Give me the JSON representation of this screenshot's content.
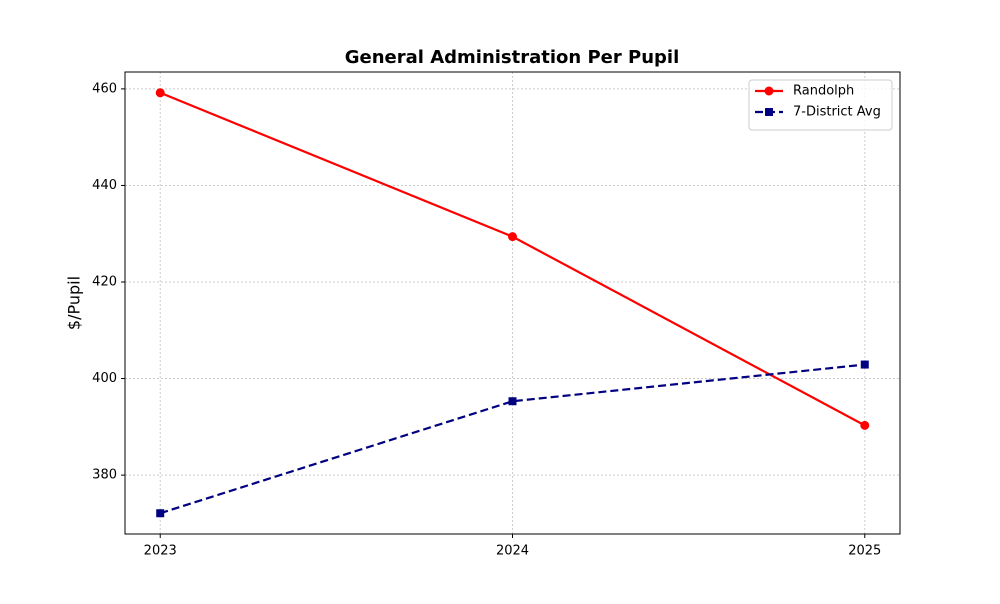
{
  "chart_data": {
    "type": "line",
    "title": "General Administration Per Pupil",
    "y_label": "$/Pupil",
    "x": [
      2023,
      2024,
      2025
    ],
    "xlim": [
      2022.9,
      2025.1
    ],
    "xticks": [
      2023,
      2024,
      2025
    ],
    "ylim": [
      367.8,
      463.5
    ],
    "yticks": [
      380,
      400,
      420,
      440,
      460
    ],
    "grid": true,
    "legend": "upper-right",
    "series": [
      {
        "name": "Randolph",
        "color": "#ff0000",
        "linestyle": "solid",
        "marker": "circle",
        "values": [
          459.2,
          429.4,
          390.3
        ]
      },
      {
        "name": "7-District Avg",
        "color": "#000080",
        "linestyle": "dashed",
        "marker": "square",
        "values": [
          372.1,
          395.3,
          402.9
        ]
      }
    ]
  }
}
